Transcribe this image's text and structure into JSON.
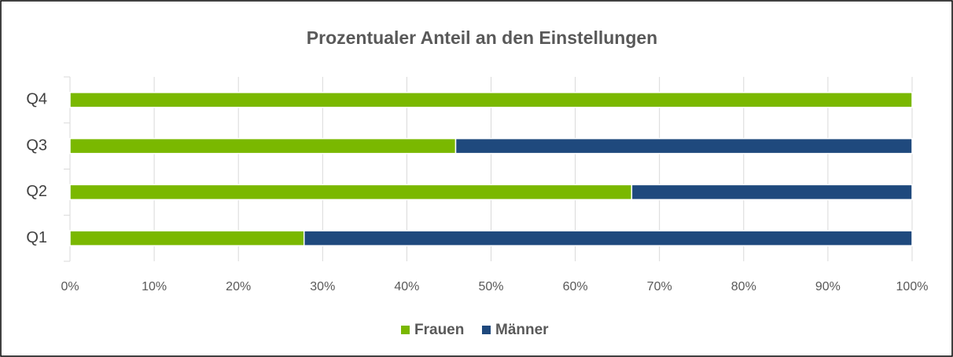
{
  "chart_data": {
    "type": "bar_stacked_horizontal",
    "title": "Prozentualer Anteil an den Einstellungen",
    "categories": [
      "Q1",
      "Q2",
      "Q3",
      "Q4"
    ],
    "series": [
      {
        "name": "Frauen",
        "color": "#7ab800",
        "values": [
          27.8,
          66.7,
          45.8,
          100
        ]
      },
      {
        "name": "Männer",
        "color": "#1f497d",
        "values": [
          72.2,
          33.3,
          54.2,
          0
        ]
      }
    ],
    "xlim": [
      0,
      100
    ],
    "xticks": [
      {
        "value": 0,
        "label": "0%"
      },
      {
        "value": 10,
        "label": "10%"
      },
      {
        "value": 20,
        "label": "20%"
      },
      {
        "value": 30,
        "label": "30%"
      },
      {
        "value": 40,
        "label": "40%"
      },
      {
        "value": 50,
        "label": "50%"
      },
      {
        "value": 60,
        "label": "60%"
      },
      {
        "value": 70,
        "label": "70%"
      },
      {
        "value": 80,
        "label": "80%"
      },
      {
        "value": 90,
        "label": "90%"
      },
      {
        "value": 100,
        "label": "100%"
      }
    ],
    "grid": true,
    "legend": "bottom"
  }
}
